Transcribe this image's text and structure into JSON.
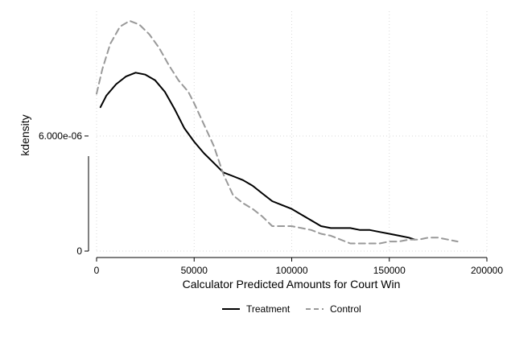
{
  "chart_data": {
    "type": "line",
    "xlabel": "Calculator Predicted Amounts for Court Win",
    "ylabel": "kdensity",
    "xlim": [
      0,
      200000
    ],
    "ylim": [
      0,
      1.25e-05
    ],
    "x_ticks": [
      0,
      50000,
      100000,
      150000,
      200000
    ],
    "x_tick_labels": [
      "0",
      "50000",
      "100000",
      "150000",
      "200000"
    ],
    "y_ticks": [
      0,
      6e-06
    ],
    "y_tick_labels": [
      "0",
      "6.000e-06"
    ],
    "grid": true,
    "legend_position": "bottom",
    "series": [
      {
        "name": "Treatment",
        "color": "#000000",
        "dash": "solid",
        "x": [
          2000,
          5000,
          10000,
          15000,
          20000,
          25000,
          30000,
          35000,
          40000,
          45000,
          50000,
          55000,
          60000,
          65000,
          70000,
          75000,
          80000,
          85000,
          90000,
          95000,
          100000,
          105000,
          110000,
          115000,
          120000,
          125000,
          130000,
          135000,
          140000,
          145000,
          150000,
          155000,
          160000,
          163000
        ],
        "y": [
          7.5e-06,
          8.1e-06,
          8.7e-06,
          9.1e-06,
          9.3e-06,
          9.2e-06,
          8.9e-06,
          8.3e-06,
          7.4e-06,
          6.4e-06,
          5.7e-06,
          5.1e-06,
          4.6e-06,
          4.1e-06,
          3.9e-06,
          3.7e-06,
          3.4e-06,
          3e-06,
          2.6e-06,
          2.4e-06,
          2.2e-06,
          1.9e-06,
          1.6e-06,
          1.3e-06,
          1.2e-06,
          1.2e-06,
          1.2e-06,
          1.1e-06,
          1.1e-06,
          1e-06,
          9e-07,
          8e-07,
          7e-07,
          6e-07
        ]
      },
      {
        "name": "Control",
        "color": "#999999",
        "dash": "dashed",
        "x": [
          0,
          3000,
          7000,
          12000,
          17000,
          22000,
          27000,
          32000,
          37000,
          42000,
          47000,
          50000,
          55000,
          60000,
          65000,
          70000,
          75000,
          80000,
          85000,
          90000,
          95000,
          100000,
          105000,
          110000,
          115000,
          120000,
          125000,
          130000,
          135000,
          140000,
          145000,
          150000,
          155000,
          160000,
          165000,
          170000,
          175000,
          180000,
          185000
        ],
        "y": [
          8.2e-06,
          9.5e-06,
          1.08e-05,
          1.17e-05,
          1.2e-05,
          1.18e-05,
          1.13e-05,
          1.06e-05,
          9.7e-06,
          8.9e-06,
          8.3e-06,
          7.7e-06,
          6.6e-06,
          5.5e-06,
          4e-06,
          2.9e-06,
          2.5e-06,
          2.2e-06,
          1.8e-06,
          1.3e-06,
          1.3e-06,
          1.3e-06,
          1.2e-06,
          1.1e-06,
          9e-07,
          8e-07,
          6e-07,
          4e-07,
          4e-07,
          4e-07,
          4e-07,
          5e-07,
          5e-07,
          6e-07,
          6e-07,
          7e-07,
          7e-07,
          6e-07,
          5e-07
        ]
      }
    ]
  }
}
